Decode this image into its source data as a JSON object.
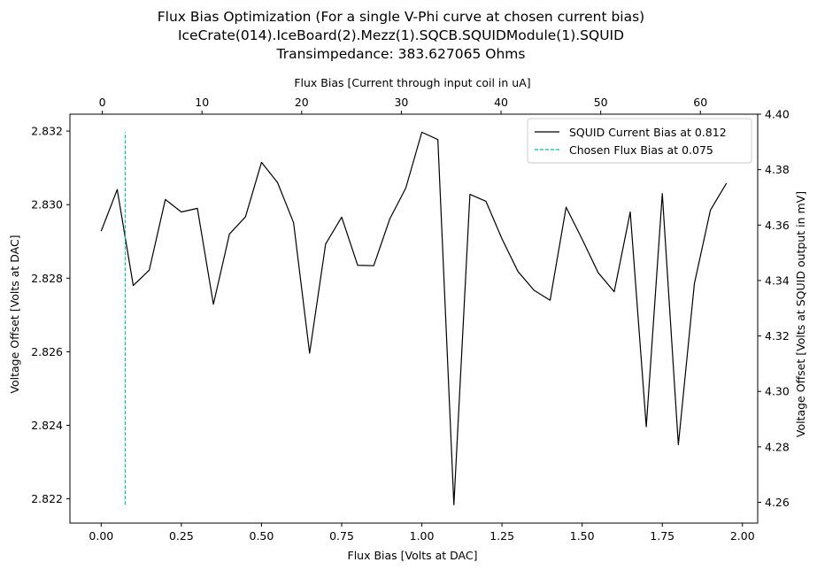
{
  "chart_data": {
    "type": "line",
    "title": [
      "Flux Bias Optimization (For a single V-Phi curve at chosen current bias)",
      "IceCrate(014).IceBoard(2).Mezz(1).SQCB.SQUIDModule(1).SQUID",
      "Transimpedance: 383.627065 Ohms"
    ],
    "xlabel": "Flux Bias [Volts at DAC]",
    "ylabel": "Voltage Offset [Volts at DAC]",
    "x2label": "Flux Bias [Current through input coil in uA]",
    "y2label": "Voltage Offset [Volts at SQUID output in mV]",
    "xlim": [
      -0.0975,
      2.0475
    ],
    "ylim": [
      2.82134,
      2.83246
    ],
    "x2lim": [
      -3.25,
      65.75
    ],
    "y2lim": [
      4.2525,
      4.4
    ],
    "xticks": [
      "0.00",
      "0.25",
      "0.50",
      "0.75",
      "1.00",
      "1.25",
      "1.50",
      "1.75",
      "2.00"
    ],
    "yticks": [
      "2.822",
      "2.824",
      "2.826",
      "2.828",
      "2.830",
      "2.832"
    ],
    "x2ticks": [
      "0",
      "10",
      "20",
      "30",
      "40",
      "50",
      "60"
    ],
    "y2ticks": [
      "4.26",
      "4.28",
      "4.30",
      "4.32",
      "4.34",
      "4.36",
      "4.38",
      "4.40"
    ],
    "grid": false,
    "legend_position": "top-right",
    "series": [
      {
        "name": "SQUID Current Bias at 0.812",
        "color": "#000000",
        "style": "solid",
        "x": [
          0.0,
          0.05,
          0.1,
          0.15,
          0.2,
          0.25,
          0.3,
          0.35,
          0.4,
          0.45,
          0.5,
          0.55,
          0.6,
          0.65,
          0.7,
          0.75,
          0.8,
          0.85,
          0.9,
          0.95,
          1.0,
          1.05,
          1.1,
          1.15,
          1.2,
          1.25,
          1.3,
          1.35,
          1.4,
          1.45,
          1.5,
          1.55,
          1.6,
          1.65,
          1.7,
          1.75,
          1.8,
          1.85,
          1.9,
          1.95
        ],
        "y": [
          2.82928,
          2.83041,
          2.8278,
          2.82822,
          2.83014,
          2.8298,
          2.8299,
          2.82729,
          2.8292,
          2.82967,
          2.83115,
          2.8306,
          2.82951,
          2.82596,
          2.82893,
          2.82966,
          2.82835,
          2.82834,
          2.82961,
          2.83045,
          2.83197,
          2.83177,
          2.82184,
          2.83028,
          2.83009,
          2.82907,
          2.82818,
          2.82767,
          2.8274,
          2.82993,
          2.82906,
          2.82815,
          2.82763,
          2.8298,
          2.82396,
          2.8303,
          2.82347,
          2.82785,
          2.82985,
          2.83058
        ]
      },
      {
        "name": "Chosen Flux Bias at 0.075",
        "color": "#00bfbf",
        "style": "dashed",
        "x": [
          0.075,
          0.075
        ],
        "y": [
          2.82184,
          2.83197
        ]
      }
    ]
  }
}
